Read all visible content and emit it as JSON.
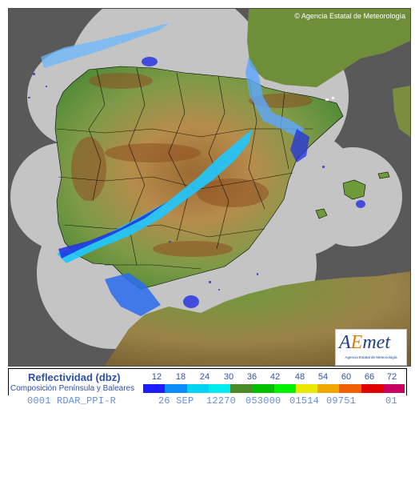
{
  "map": {
    "copyright": "© Agencia Estatal de Meteorología",
    "colors": {
      "outside_coverage": "#595959",
      "coverage": "#c4c4c4",
      "sea_deep": "#3f6b2e",
      "low_land": "#5f8f3a",
      "mid_land": "#b08a48",
      "high_land": "#8e4f22",
      "borders": "#000000",
      "echo_weak": "#1ec8ff",
      "echo_strong": "#2030e0"
    }
  },
  "logo": {
    "word_a": "A",
    "word_e": "E",
    "word_met": "met",
    "subtitle": "Agencia Estatal de Meteorología"
  },
  "legend": {
    "title": "Reflectividad (dbz)",
    "subtitle": "Composición Península y Baleares",
    "ticks": [
      "12",
      "18",
      "24",
      "30",
      "36",
      "42",
      "48",
      "54",
      "60",
      "66",
      "72"
    ],
    "colors": [
      "#1c1cff",
      "#0c8cf8",
      "#00d4f0",
      "#00ecec",
      "#4a8a2a",
      "#00c000",
      "#00f000",
      "#e8e800",
      "#f0a800",
      "#f06000",
      "#e00000",
      "#c80060"
    ]
  },
  "status": {
    "product": "0001 RDAR_PPI-R",
    "date": "26 SEP",
    "field1": "12270",
    "field2": "053000",
    "field3": "01514",
    "field4": "09751",
    "field5": "01"
  }
}
